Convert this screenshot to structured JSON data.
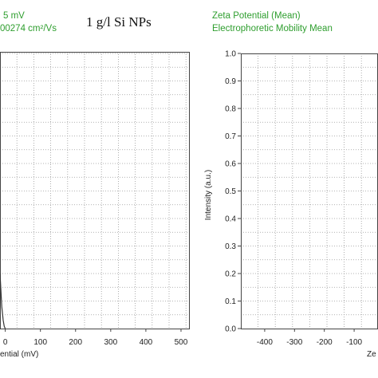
{
  "header": {
    "left_line1": "5 mV",
    "left_line2": "00274 cm²/Vs",
    "center_title": "1 g/l Si NPs",
    "right_line1": "Zeta Potential (Mean)",
    "right_line2": "Electrophoretic Mobility Mean"
  },
  "colors": {
    "legend_text": "#2e9e2e",
    "grid": "#9a9a9a",
    "curve": "#333333"
  },
  "chart_data": [
    {
      "type": "line",
      "title": "",
      "xlabel": "ential (mV)",
      "ylabel": "",
      "x_ticks": [
        "0",
        "100",
        "200",
        "300",
        "400",
        "500"
      ],
      "y_ticks": [],
      "xlim": [
        -15,
        525
      ],
      "ylim": [
        0,
        1.0
      ],
      "grid": true,
      "series": [
        {
          "x": [
            -15,
            -10,
            -6,
            -3,
            0
          ],
          "y": [
            0.2,
            0.08,
            0.03,
            0.008,
            0.0
          ]
        }
      ]
    },
    {
      "type": "line",
      "title": "",
      "xlabel": "Ze",
      "ylabel": "Intensity (a.u.)",
      "x_ticks": [
        "-400",
        "-300",
        "-200",
        "-100"
      ],
      "y_ticks": [
        "0.0",
        "0.1",
        "0.2",
        "0.3",
        "0.4",
        "0.5",
        "0.6",
        "0.7",
        "0.8",
        "0.9",
        "1.0"
      ],
      "xlim": [
        -480,
        -20
      ],
      "ylim": [
        0,
        1.0
      ],
      "grid": true,
      "series": []
    }
  ]
}
